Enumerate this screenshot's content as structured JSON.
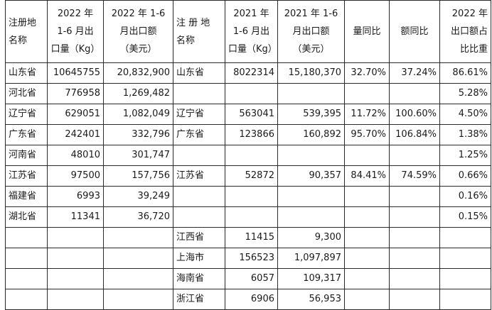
{
  "table": {
    "headers": [
      [
        "注册地",
        "名称"
      ],
      [
        "2022 年",
        "1-6 月出",
        "口量（Kg）"
      ],
      [
        "2022 年 1-6",
        "月出口额",
        "（美元）"
      ],
      [
        "注 册 地",
        "名称"
      ],
      [
        "2021 年",
        "1-6 月出",
        "口量（Kg）"
      ],
      [
        "2021 年 1-6",
        "月出口额",
        "（美元）"
      ],
      [
        "量同比"
      ],
      [
        "额同比"
      ],
      [
        "2022 年",
        "出口额占",
        "比比重"
      ]
    ],
    "rows": [
      [
        "山东省",
        "10645755",
        "20,832,900",
        "山东省",
        "8022314",
        "15,180,370",
        "32.70%",
        "37.24%",
        "86.61%"
      ],
      [
        "河北省",
        "776958",
        "1,269,482",
        "",
        "",
        "",
        "",
        "",
        "5.28%"
      ],
      [
        "辽宁省",
        "629051",
        "1,082,049",
        "辽宁省",
        "563041",
        "539,395",
        "11.72%",
        "100.60%",
        "4.50%"
      ],
      [
        "广东省",
        "242401",
        "332,796",
        "广东省",
        "123866",
        "160,892",
        "95.70%",
        "106.84%",
        "1.38%"
      ],
      [
        "河南省",
        "48010",
        "301,747",
        "",
        "",
        "",
        "",
        "",
        "1.25%"
      ],
      [
        "江苏省",
        "97500",
        "157,756",
        "江苏省",
        "52872",
        "90,357",
        "84.41%",
        "74.59%",
        "0.66%"
      ],
      [
        "福建省",
        "6993",
        "39,249",
        "",
        "",
        "",
        "",
        "",
        "0.16%"
      ],
      [
        "湖北省",
        "11341",
        "36,720",
        "",
        "",
        "",
        "",
        "",
        "0.15%"
      ],
      [
        "",
        "",
        "",
        "江西省",
        "11415",
        "9,300",
        "",
        "",
        ""
      ],
      [
        "",
        "",
        "",
        "上海市",
        "156523",
        "1,097,897",
        "",
        "",
        ""
      ],
      [
        "",
        "",
        "",
        "海南省",
        "6057",
        "109,317",
        "",
        "",
        ""
      ],
      [
        "",
        "",
        "",
        "浙江省",
        "6906",
        "56,953",
        "",
        "",
        ""
      ]
    ]
  }
}
